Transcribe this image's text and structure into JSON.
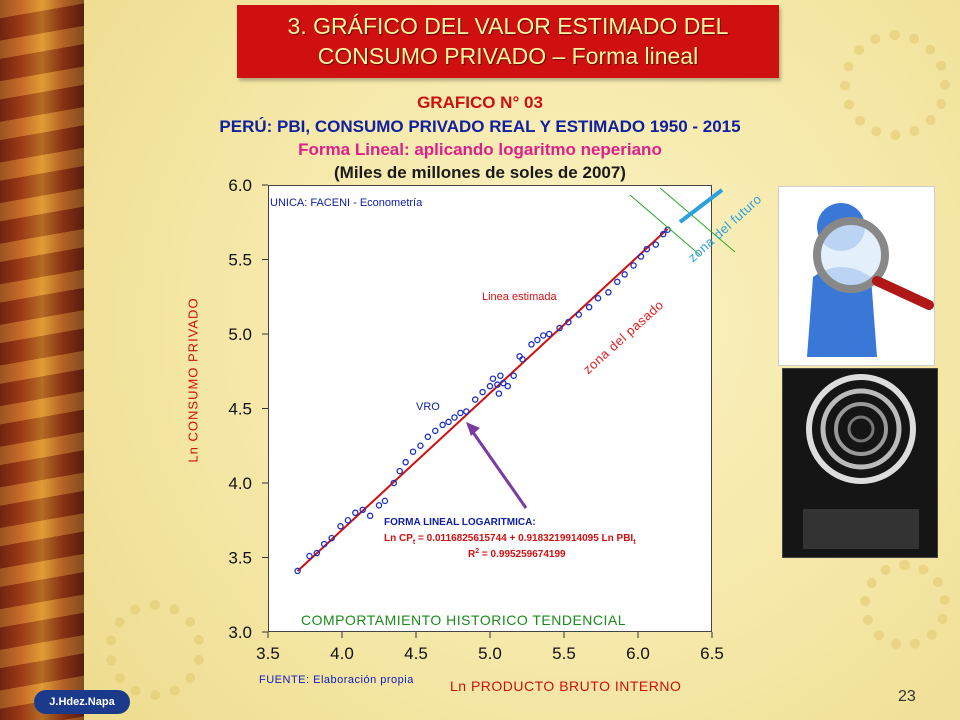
{
  "slide": {
    "title_line1": "3. GRÁFICO DEL VALOR ESTIMADO DEL",
    "title_line2": "CONSUMO PRIVADO – Forma lineal",
    "author": "J.Hdez.Napa",
    "page_number": "23"
  },
  "colors": {
    "title_bg": "#d01010",
    "title_text": "#fff8a0",
    "points": "#1a2fc8",
    "line": "#d01010",
    "arrow": "#7a3aa0",
    "future_mark": "#2aa0e0"
  },
  "chart_data": {
    "type": "scatter",
    "title_lines": [
      "GRAFICO N° 03",
      "PERÚ: PBI, CONSUMO PRIVADO REAL Y ESTIMADO 1950 - 2015",
      "Forma Lineal: aplicando logaritmo neperiano",
      "(Miles de millones de soles de 2007)"
    ],
    "xlabel": "Ln PRODUCTO BRUTO INTERNO",
    "ylabel": "Ln CONSUMO PRIVADO",
    "xlim": [
      3.5,
      6.5
    ],
    "ylim": [
      3.0,
      6.0
    ],
    "xticks": [
      "3.5",
      "4.0",
      "4.5",
      "5.0",
      "5.5",
      "6.0",
      "6.5"
    ],
    "yticks": [
      "3.0",
      "3.5",
      "4.0",
      "4.5",
      "5.0",
      "5.5",
      "6.0"
    ],
    "grid": false,
    "legend": "none",
    "source": "FUENTE: Elaboración propia",
    "annotations": {
      "inst": "UNICA: FACENI - Econometría",
      "linea": "Linea estimada",
      "vro": "VRO",
      "forma_title": "FORMA LINEAL LOGARITMICA:",
      "forma_eq_lhs": "Ln CP",
      "forma_eq_sub": "t",
      "forma_eq": " =   0.0116825615744 +   0.9183219914095 Ln PBI",
      "forma_eq_sub2": "t",
      "r2_label": "R",
      "r2_sup": "2",
      "r2": " = 0.995259674199",
      "bottom": "COMPORTAMIENTO HISTORICO TENDENCIAL",
      "zona_futuro": "zona del futuro",
      "zona_pasado": "zona del pasado"
    },
    "fit": {
      "intercept": 0.0116825615744,
      "slope": 0.9183219914095,
      "x_range": [
        3.7,
        6.2
      ]
    },
    "series": [
      {
        "name": "VRO",
        "x": [
          3.7,
          3.78,
          3.83,
          3.88,
          3.93,
          3.99,
          4.04,
          4.09,
          4.14,
          4.19,
          4.25,
          4.29,
          4.35,
          4.39,
          4.43,
          4.48,
          4.53,
          4.58,
          4.63,
          4.68,
          4.72,
          4.76,
          4.8,
          4.84,
          4.9,
          4.95,
          5.0,
          5.02,
          5.05,
          5.07,
          5.09,
          5.06,
          5.12,
          5.16,
          5.2,
          5.22,
          5.28,
          5.32,
          5.36,
          5.4,
          5.47,
          5.53,
          5.6,
          5.67,
          5.73,
          5.8,
          5.86,
          5.91,
          5.97,
          6.02,
          6.06,
          6.12,
          6.17,
          6.2
        ],
        "y": [
          3.41,
          3.51,
          3.53,
          3.59,
          3.63,
          3.71,
          3.75,
          3.8,
          3.82,
          3.78,
          3.85,
          3.88,
          4.0,
          4.08,
          4.14,
          4.21,
          4.25,
          4.31,
          4.35,
          4.39,
          4.41,
          4.44,
          4.47,
          4.48,
          4.56,
          4.61,
          4.65,
          4.7,
          4.66,
          4.72,
          4.67,
          4.6,
          4.65,
          4.72,
          4.85,
          4.83,
          4.93,
          4.96,
          4.99,
          5.0,
          5.04,
          5.08,
          5.13,
          5.18,
          5.24,
          5.28,
          5.35,
          5.4,
          5.46,
          5.52,
          5.57,
          5.6,
          5.67,
          5.7
        ]
      }
    ]
  }
}
